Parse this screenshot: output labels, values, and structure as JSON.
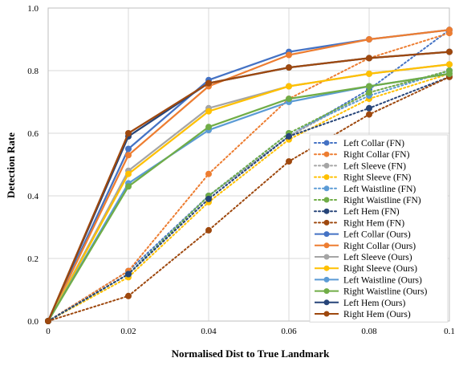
{
  "chart_data": {
    "type": "line",
    "xlabel": "Normalised Dist to True Landmark",
    "ylabel": "Detection Rate",
    "x": [
      0,
      0.02,
      0.04,
      0.06,
      0.08,
      0.1
    ],
    "x_tick_labels": [
      "0",
      "0.02",
      "0.04",
      "0.06",
      "0.08",
      "0.1"
    ],
    "y_tick_labels": [
      "0.0",
      "0.2",
      "0.4",
      "0.6",
      "0.8",
      "1.0"
    ],
    "xlim": [
      0,
      0.1
    ],
    "ylim": [
      0,
      1.0
    ],
    "grid": true,
    "legend_position": "bottom-right",
    "series": [
      {
        "name": "Left Collar (FN)",
        "style": "dotted",
        "color": "#4472C4",
        "values": [
          0,
          0.16,
          0.4,
          0.59,
          0.74,
          0.93
        ]
      },
      {
        "name": "Right Collar (FN)",
        "style": "dotted",
        "color": "#ED7D31",
        "values": [
          0,
          0.16,
          0.47,
          0.71,
          0.84,
          0.92
        ]
      },
      {
        "name": "Left Sleeve (FN)",
        "style": "dotted",
        "color": "#A5A5A5",
        "values": [
          0,
          0.15,
          0.4,
          0.59,
          0.73,
          0.8
        ]
      },
      {
        "name": "Right Sleeve (FN)",
        "style": "dotted",
        "color": "#FFC000",
        "values": [
          0,
          0.14,
          0.38,
          0.58,
          0.71,
          0.79
        ]
      },
      {
        "name": "Left Waistline (FN)",
        "style": "dotted",
        "color": "#5B9BD5",
        "values": [
          0,
          0.15,
          0.4,
          0.6,
          0.72,
          0.8
        ]
      },
      {
        "name": "Right Waistline (FN)",
        "style": "dotted",
        "color": "#70AD47",
        "values": [
          0,
          0.15,
          0.4,
          0.6,
          0.73,
          0.8
        ]
      },
      {
        "name": "Left Hem (FN)",
        "style": "dotted",
        "color": "#264478",
        "values": [
          0,
          0.15,
          0.39,
          0.59,
          0.68,
          0.78
        ]
      },
      {
        "name": "Right Hem (FN)",
        "style": "dotted",
        "color": "#9E480E",
        "values": [
          0,
          0.08,
          0.29,
          0.51,
          0.66,
          0.78
        ]
      },
      {
        "name": "Left Collar (Ours)",
        "style": "solid",
        "color": "#4472C4",
        "values": [
          0,
          0.55,
          0.77,
          0.86,
          0.9,
          0.93
        ]
      },
      {
        "name": "Right Collar (Ours)",
        "style": "solid",
        "color": "#ED7D31",
        "values": [
          0,
          0.53,
          0.75,
          0.85,
          0.9,
          0.93
        ]
      },
      {
        "name": "Left Sleeve (Ours)",
        "style": "solid",
        "color": "#A5A5A5",
        "values": [
          0,
          0.48,
          0.68,
          0.75,
          0.79,
          0.82
        ]
      },
      {
        "name": "Right Sleeve (Ours)",
        "style": "solid",
        "color": "#FFC000",
        "values": [
          0,
          0.47,
          0.67,
          0.75,
          0.79,
          0.82
        ]
      },
      {
        "name": "Left Waistline (Ours)",
        "style": "solid",
        "color": "#5B9BD5",
        "values": [
          0,
          0.44,
          0.61,
          0.7,
          0.75,
          0.79
        ]
      },
      {
        "name": "Right Waistline (Ours)",
        "style": "solid",
        "color": "#70AD47",
        "values": [
          0,
          0.43,
          0.62,
          0.71,
          0.75,
          0.79
        ]
      },
      {
        "name": "Left Hem (Ours)",
        "style": "solid",
        "color": "#264478",
        "values": [
          0,
          0.59,
          0.76,
          0.81,
          0.84,
          0.86
        ]
      },
      {
        "name": "Right Hem (Ours)",
        "style": "solid",
        "color": "#9E480E",
        "values": [
          0,
          0.6,
          0.76,
          0.81,
          0.84,
          0.86
        ]
      }
    ]
  }
}
